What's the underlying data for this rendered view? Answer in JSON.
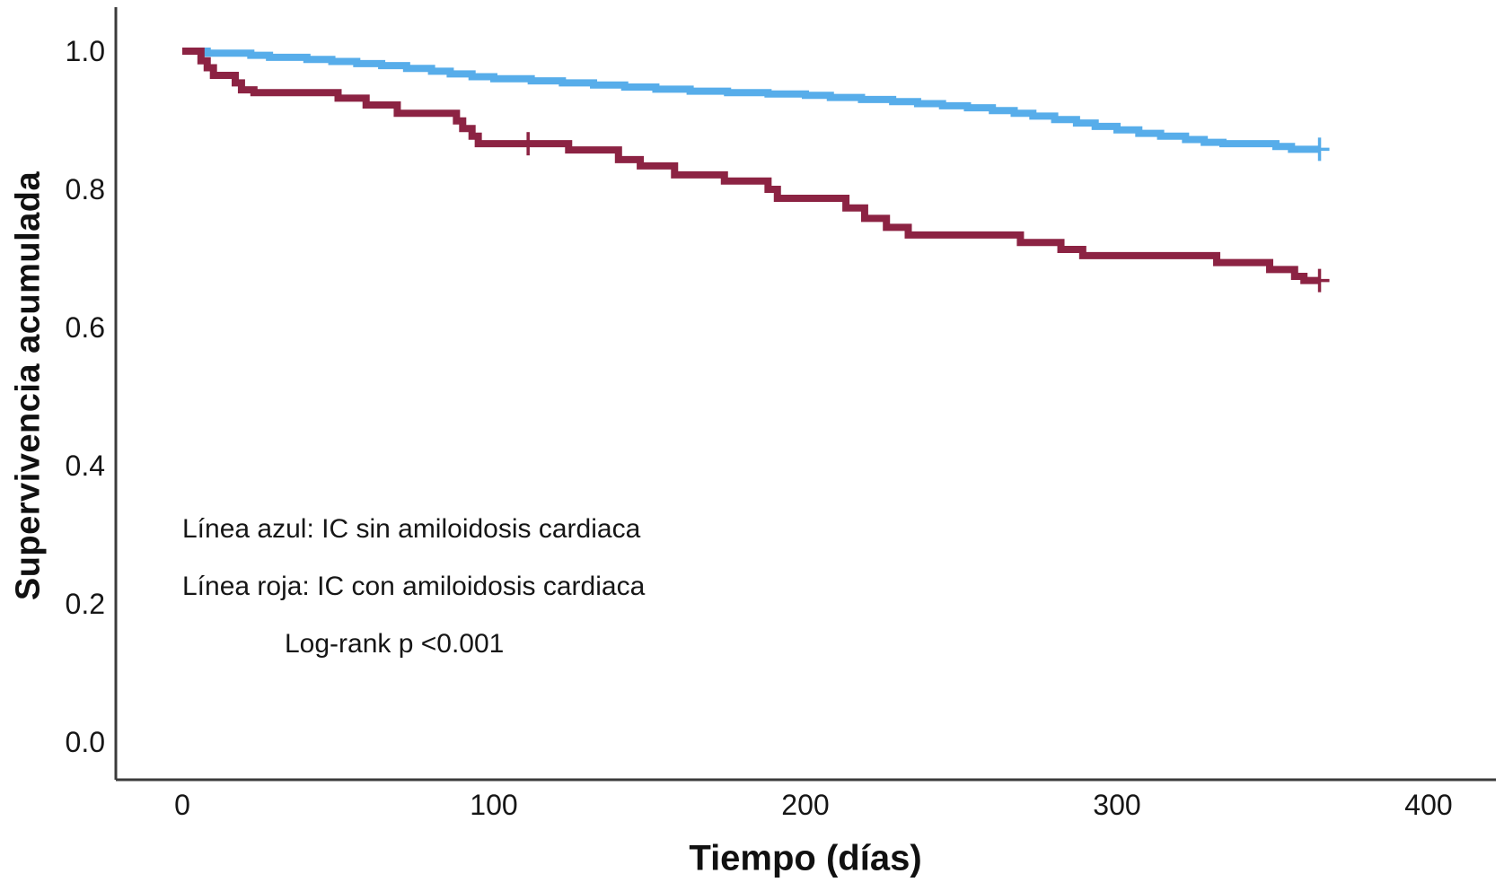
{
  "chart_data": {
    "type": "line",
    "subtype": "kaplan-meier-step",
    "title": "",
    "xlabel": "Tiempo (días)",
    "ylabel": "Supervivencia acumulada",
    "xticks": [
      0,
      100,
      200,
      300,
      400
    ],
    "yticks": [
      1.0,
      0.8,
      0.6,
      0.4,
      0.2,
      0.0
    ],
    "xlim": [
      -21,
      424
    ],
    "ylim": [
      -0.055,
      1.065
    ],
    "grid": false,
    "legend_position": "none",
    "series": [
      {
        "name": "IC sin amiloidosis cardiaca",
        "color": "#57ADEA",
        "points": [
          [
            0,
            1.0
          ],
          [
            8,
            0.997
          ],
          [
            22,
            0.994
          ],
          [
            28,
            0.991
          ],
          [
            40,
            0.988
          ],
          [
            48,
            0.985
          ],
          [
            56,
            0.982
          ],
          [
            64,
            0.979
          ],
          [
            72,
            0.975
          ],
          [
            80,
            0.971
          ],
          [
            86,
            0.967
          ],
          [
            93,
            0.963
          ],
          [
            100,
            0.96
          ],
          [
            112,
            0.957
          ],
          [
            122,
            0.954
          ],
          [
            132,
            0.951
          ],
          [
            142,
            0.948
          ],
          [
            152,
            0.945
          ],
          [
            163,
            0.942
          ],
          [
            175,
            0.94
          ],
          [
            188,
            0.938
          ],
          [
            200,
            0.936
          ],
          [
            208,
            0.933
          ],
          [
            218,
            0.93
          ],
          [
            228,
            0.927
          ],
          [
            236,
            0.924
          ],
          [
            244,
            0.921
          ],
          [
            252,
            0.918
          ],
          [
            260,
            0.914
          ],
          [
            267,
            0.91
          ],
          [
            273,
            0.906
          ],
          [
            280,
            0.901
          ],
          [
            287,
            0.896
          ],
          [
            293,
            0.891
          ],
          [
            300,
            0.886
          ],
          [
            307,
            0.881
          ],
          [
            314,
            0.877
          ],
          [
            322,
            0.872
          ],
          [
            328,
            0.868
          ],
          [
            334,
            0.866
          ],
          [
            351,
            0.862
          ],
          [
            356,
            0.858
          ],
          [
            365,
            0.858
          ]
        ],
        "censors": [
          [
            365,
            0.858
          ]
        ]
      },
      {
        "name": "IC con amiloidosis cardiaca",
        "color": "#8C2343",
        "points": [
          [
            0,
            1.0
          ],
          [
            6,
            0.986
          ],
          [
            8,
            0.976
          ],
          [
            10,
            0.965
          ],
          [
            17,
            0.954
          ],
          [
            19,
            0.944
          ],
          [
            23,
            0.94
          ],
          [
            50,
            0.932
          ],
          [
            59,
            0.922
          ],
          [
            69,
            0.91
          ],
          [
            88,
            0.899
          ],
          [
            90,
            0.888
          ],
          [
            93,
            0.877
          ],
          [
            95,
            0.866
          ],
          [
            124,
            0.857
          ],
          [
            140,
            0.843
          ],
          [
            147,
            0.834
          ],
          [
            158,
            0.821
          ],
          [
            174,
            0.812
          ],
          [
            188,
            0.8
          ],
          [
            191,
            0.787
          ],
          [
            213,
            0.773
          ],
          [
            219,
            0.758
          ],
          [
            226,
            0.745
          ],
          [
            233,
            0.734
          ],
          [
            269,
            0.723
          ],
          [
            282,
            0.713
          ],
          [
            289,
            0.704
          ],
          [
            332,
            0.694
          ],
          [
            349,
            0.684
          ],
          [
            357,
            0.674
          ],
          [
            360,
            0.668
          ],
          [
            365,
            0.668
          ]
        ],
        "censors": [
          [
            111,
            0.866
          ],
          [
            365,
            0.668
          ]
        ]
      }
    ],
    "annotations": [
      {
        "text": "Línea azul: IC sin amiloidosis cardiaca"
      },
      {
        "text": "Línea roja: IC con amiloidosis cardiaca"
      },
      {
        "text": "Log-rank p <0.001"
      }
    ]
  },
  "colors": {
    "axis": "#3b3b3b",
    "text": "#161616",
    "background": "#ffffff",
    "series_blue": "#57ADEA",
    "series_red": "#8C2343"
  }
}
